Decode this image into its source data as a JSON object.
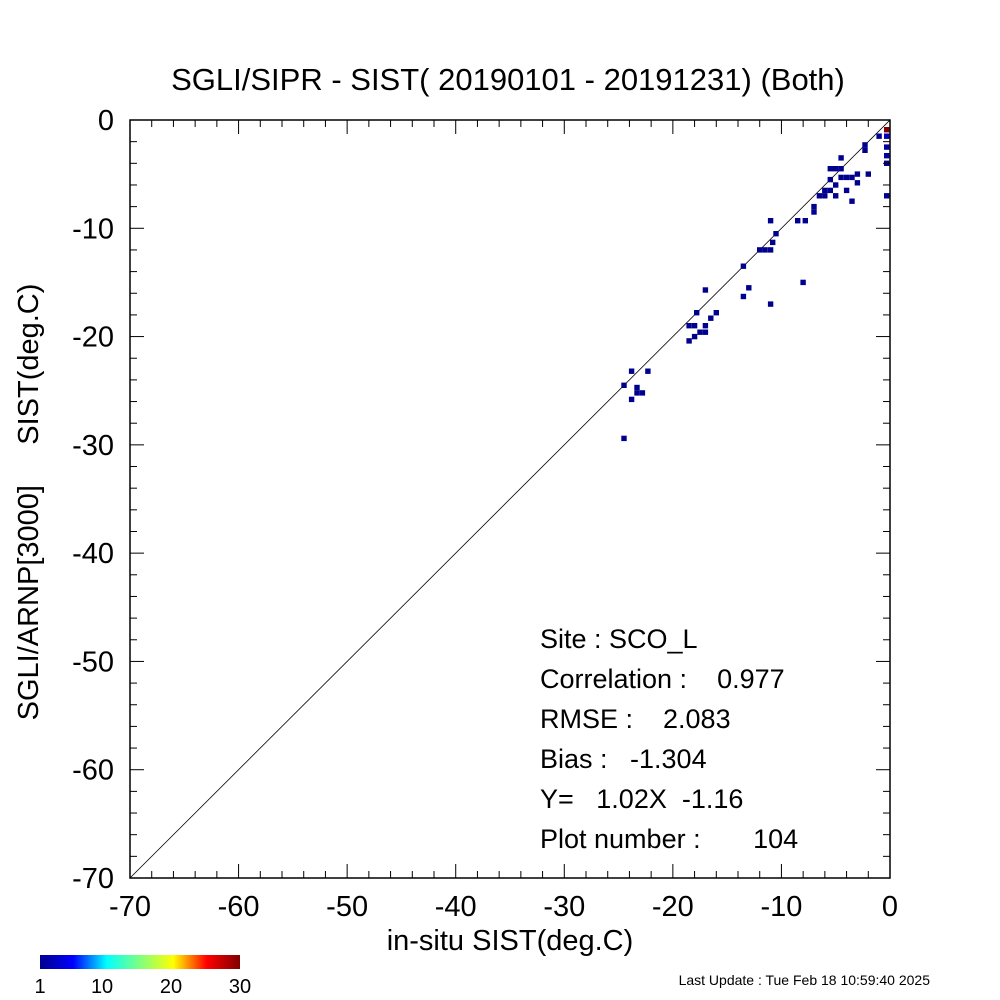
{
  "chart_data": {
    "type": "heatmap",
    "title": "SGLI/SIPR - SIST( 20190101 - 20191231) (Both)",
    "xlabel": "in-situ SIST(deg.C)",
    "ylabel": "SGLI/ARNP[3000]     SIST(deg.C)",
    "xlim": [
      -70,
      0
    ],
    "ylim": [
      -70,
      0
    ],
    "x_ticks": [
      "-70",
      "-60",
      "-50",
      "-40",
      "-30",
      "-20",
      "-10",
      "0"
    ],
    "y_ticks": [
      "0",
      "-10",
      "-20",
      "-30",
      "-40",
      "-50",
      "-60",
      "-70"
    ],
    "grid": false,
    "reference_line": "y = x",
    "color_scale": {
      "labels": [
        "1",
        "10",
        "20",
        "30"
      ],
      "min": 1,
      "max": 30,
      "colors": [
        "#00008f",
        "#0000ff",
        "#00ffff",
        "#7fff7f",
        "#ffff00",
        "#ff0000",
        "#7f0000"
      ]
    },
    "points": [
      {
        "x": -0.3,
        "y": -0.9,
        "count": 30
      },
      {
        "x": -0.3,
        "y": -1.5,
        "count": 3
      },
      {
        "x": -0.3,
        "y": -2.5,
        "count": 2
      },
      {
        "x": -0.3,
        "y": -3.3,
        "count": 2
      },
      {
        "x": -0.3,
        "y": -4.0,
        "count": 1
      },
      {
        "x": -0.3,
        "y": -7.0,
        "count": 1
      },
      {
        "x": -1.0,
        "y": -1.5,
        "count": 1
      },
      {
        "x": -2.3,
        "y": -2.3,
        "count": 1
      },
      {
        "x": -2.3,
        "y": -2.8,
        "count": 1
      },
      {
        "x": -2.0,
        "y": -5.0,
        "count": 1
      },
      {
        "x": -3.0,
        "y": -5.0,
        "count": 1
      },
      {
        "x": -3.0,
        "y": -5.8,
        "count": 1
      },
      {
        "x": -3.5,
        "y": -5.3,
        "count": 1
      },
      {
        "x": -4.0,
        "y": -5.3,
        "count": 1
      },
      {
        "x": -4.0,
        "y": -6.5,
        "count": 1
      },
      {
        "x": -3.5,
        "y": -7.5,
        "count": 1
      },
      {
        "x": -4.5,
        "y": -4.5,
        "count": 1
      },
      {
        "x": -4.5,
        "y": -5.3,
        "count": 1
      },
      {
        "x": -4.5,
        "y": -3.5,
        "count": 1
      },
      {
        "x": -5.0,
        "y": -4.5,
        "count": 1
      },
      {
        "x": -5.0,
        "y": -6.0,
        "count": 1
      },
      {
        "x": -5.0,
        "y": -7.0,
        "count": 1
      },
      {
        "x": -5.5,
        "y": -4.5,
        "count": 1
      },
      {
        "x": -5.5,
        "y": -5.5,
        "count": 1
      },
      {
        "x": -5.5,
        "y": -6.5,
        "count": 1
      },
      {
        "x": -6.0,
        "y": -6.5,
        "count": 1
      },
      {
        "x": -6.0,
        "y": -7.0,
        "count": 1
      },
      {
        "x": -6.5,
        "y": -7.0,
        "count": 1
      },
      {
        "x": -7.0,
        "y": -8.0,
        "count": 1
      },
      {
        "x": -7.0,
        "y": -8.5,
        "count": 1
      },
      {
        "x": -7.8,
        "y": -9.3,
        "count": 1
      },
      {
        "x": -8.5,
        "y": -9.3,
        "count": 1
      },
      {
        "x": -8.0,
        "y": -15.0,
        "count": 1
      },
      {
        "x": -10.5,
        "y": -10.5,
        "count": 1
      },
      {
        "x": -11.0,
        "y": -9.3,
        "count": 1
      },
      {
        "x": -10.8,
        "y": -11.3,
        "count": 1
      },
      {
        "x": -11.0,
        "y": -12.0,
        "count": 1
      },
      {
        "x": -11.5,
        "y": -12.0,
        "count": 1
      },
      {
        "x": -12.0,
        "y": -12.0,
        "count": 1
      },
      {
        "x": -11.0,
        "y": -17.0,
        "count": 1
      },
      {
        "x": -13.0,
        "y": -15.5,
        "count": 1
      },
      {
        "x": -13.5,
        "y": -13.5,
        "count": 1
      },
      {
        "x": -13.5,
        "y": -16.3,
        "count": 1
      },
      {
        "x": -16.0,
        "y": -17.8,
        "count": 1
      },
      {
        "x": -16.5,
        "y": -18.3,
        "count": 1
      },
      {
        "x": -17.0,
        "y": -19.0,
        "count": 1
      },
      {
        "x": -17.0,
        "y": -19.6,
        "count": 1
      },
      {
        "x": -17.5,
        "y": -19.6,
        "count": 1
      },
      {
        "x": -17.0,
        "y": -15.7,
        "count": 1
      },
      {
        "x": -17.8,
        "y": -17.8,
        "count": 1
      },
      {
        "x": -18.0,
        "y": -19.0,
        "count": 1
      },
      {
        "x": -18.0,
        "y": -20.0,
        "count": 1
      },
      {
        "x": -18.5,
        "y": -20.4,
        "count": 1
      },
      {
        "x": -18.5,
        "y": -19.0,
        "count": 1
      },
      {
        "x": -22.3,
        "y": -23.2,
        "count": 1
      },
      {
        "x": -22.8,
        "y": -25.2,
        "count": 1
      },
      {
        "x": -23.3,
        "y": -24.7,
        "count": 1
      },
      {
        "x": -23.3,
        "y": -25.2,
        "count": 1
      },
      {
        "x": -23.8,
        "y": -23.2,
        "count": 1
      },
      {
        "x": -23.8,
        "y": -25.8,
        "count": 1
      },
      {
        "x": -24.5,
        "y": -24.5,
        "count": 1
      },
      {
        "x": -24.5,
        "y": -29.4,
        "count": 1
      }
    ],
    "stats": {
      "site": "Site : SCO_L",
      "correlation": "Correlation :    0.977",
      "rmse": "RMSE :    2.083",
      "bias": "Bias :   -1.304",
      "regression": "Y=   1.02X  -1.16",
      "plot_number": "Plot number :       104"
    }
  },
  "footer": {
    "last_update": "Last Update : Tue Feb 18 10:59:40 2025"
  }
}
